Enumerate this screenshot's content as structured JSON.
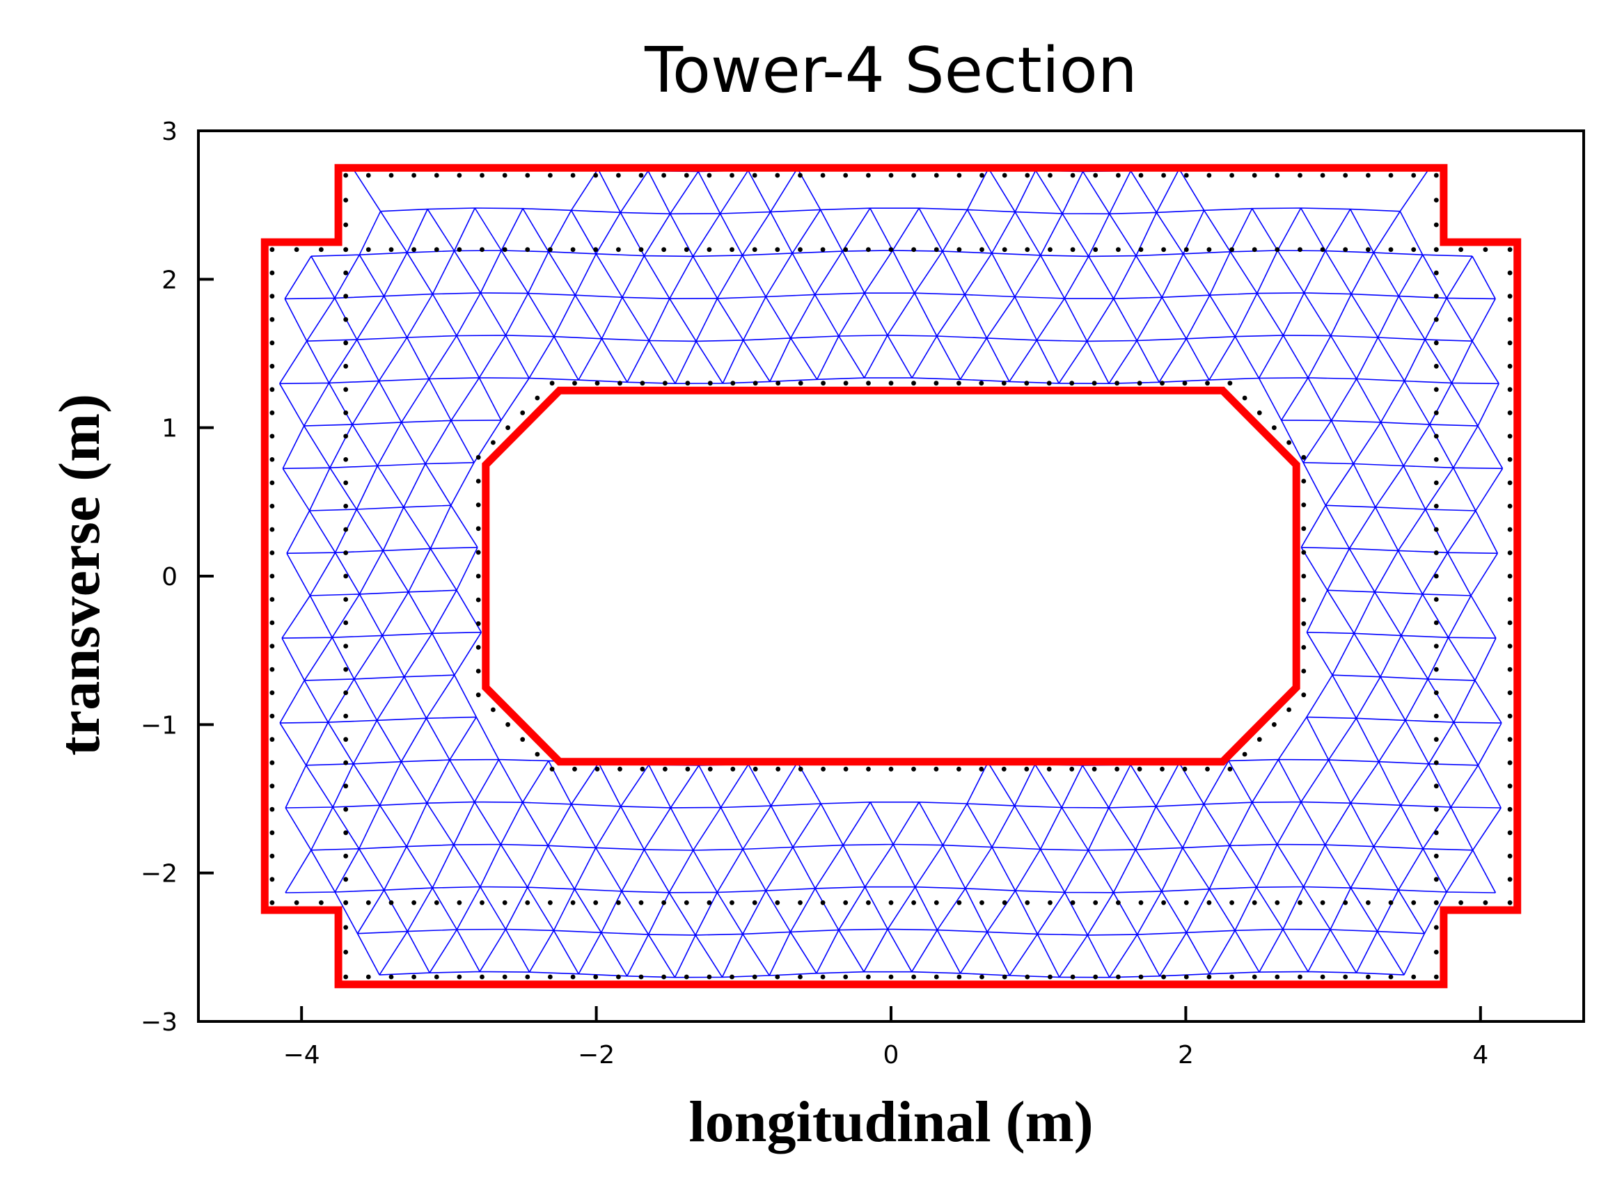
{
  "chart_data": {
    "type": "scatter",
    "title": "Tower-4 Section",
    "xlabel": "longitudinal (m)",
    "ylabel": "transverse (m)",
    "xlim": [
      -4.7,
      4.7
    ],
    "ylim": [
      -3.0,
      3.0
    ],
    "x_ticks": [
      -4,
      -2,
      0,
      2,
      4
    ],
    "y_ticks": [
      -3,
      -2,
      -1,
      0,
      1,
      2,
      3
    ],
    "x_tick_labels": [
      "−4",
      "−2",
      "0",
      "2",
      "4"
    ],
    "y_tick_labels": [
      "−3",
      "−2",
      "−1",
      "0",
      "1",
      "2",
      "3"
    ],
    "grid": false,
    "outer_outline": [
      [
        -3.75,
        2.75
      ],
      [
        3.75,
        2.75
      ],
      [
        3.75,
        2.25
      ],
      [
        4.25,
        2.25
      ],
      [
        4.25,
        -2.25
      ],
      [
        3.75,
        -2.25
      ],
      [
        3.75,
        -2.75
      ],
      [
        -3.75,
        -2.75
      ],
      [
        -3.75,
        -2.25
      ],
      [
        -4.25,
        -2.25
      ],
      [
        -4.25,
        2.25
      ],
      [
        -3.75,
        2.25
      ]
    ],
    "inner_outline": [
      [
        -2.25,
        1.25
      ],
      [
        2.25,
        1.25
      ],
      [
        2.75,
        0.75
      ],
      [
        2.75,
        -0.75
      ],
      [
        2.25,
        -1.25
      ],
      [
        -2.25,
        -1.25
      ],
      [
        -2.75,
        -0.75
      ],
      [
        -2.75,
        0.75
      ]
    ],
    "rebar_outer_path": [
      [
        -3.7,
        2.7
      ],
      [
        3.7,
        2.7
      ],
      [
        3.7,
        2.2
      ],
      [
        4.2,
        2.2
      ],
      [
        4.2,
        -2.2
      ],
      [
        3.7,
        -2.2
      ],
      [
        3.7,
        -2.7
      ],
      [
        -3.7,
        -2.7
      ],
      [
        -3.7,
        -2.2
      ],
      [
        -4.2,
        -2.2
      ],
      [
        -4.2,
        2.2
      ],
      [
        -3.7,
        2.2
      ]
    ],
    "rebar_inner_ring": [
      [
        -3.7,
        2.2
      ],
      [
        3.7,
        2.2
      ],
      [
        3.7,
        -2.2
      ],
      [
        -3.7,
        -2.2
      ]
    ],
    "rebar_hole_ring": [
      [
        -2.3,
        1.3
      ],
      [
        2.3,
        1.3
      ],
      [
        2.8,
        0.8
      ],
      [
        2.8,
        -0.8
      ],
      [
        2.3,
        -1.3
      ],
      [
        -2.3,
        -1.3
      ],
      [
        -2.8,
        -0.8
      ],
      [
        -2.8,
        0.8
      ]
    ],
    "rebar_spacing": 0.155,
    "colors": {
      "outline": "#ff0000",
      "mesh": "#0000ff",
      "rebar": "#000000",
      "axes": "#000000"
    }
  }
}
